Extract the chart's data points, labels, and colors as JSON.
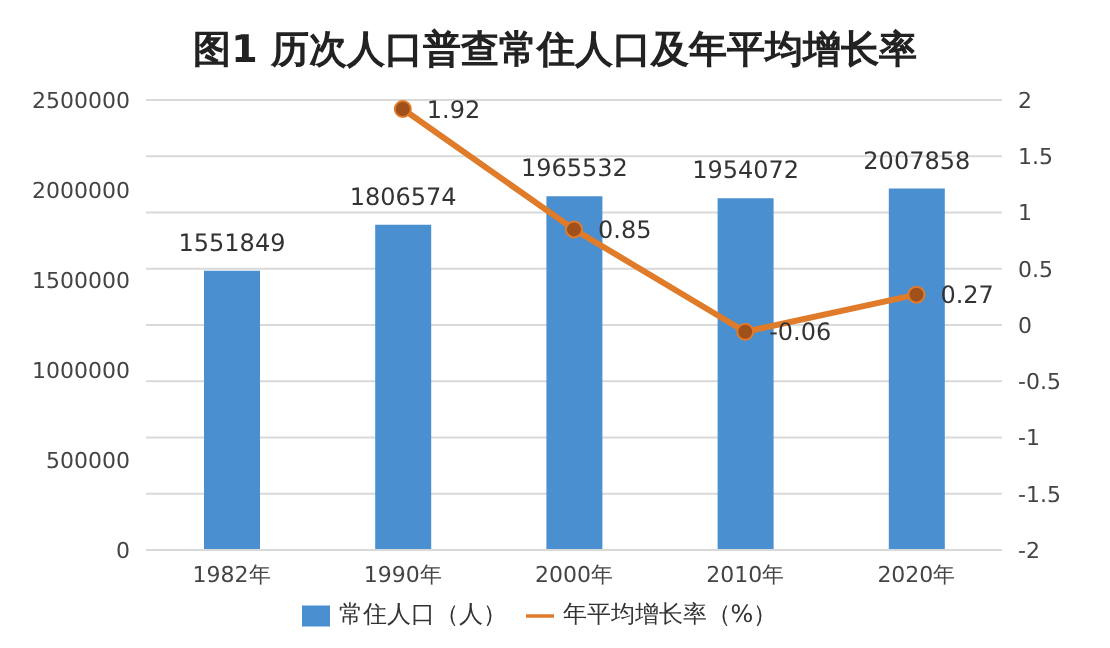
{
  "chart_data": {
    "type": "bar",
    "title": "图1  历次人口普查常住人口及年平均增长率",
    "categories": [
      "1982年",
      "1990年",
      "2000年",
      "2010年",
      "2020年"
    ],
    "series": [
      {
        "name": "常住人口（人）",
        "color": "#4a8fd0",
        "values": [
          1551849,
          1806574,
          1965532,
          1954072,
          2007858
        ]
      },
      {
        "name": "年平均增长率（%）",
        "type": "line",
        "axis": "y2",
        "color": "#e07b2a",
        "values": [
          null,
          1.92,
          0.85,
          -0.06,
          0.27
        ]
      }
    ],
    "ylim": [
      0,
      2500000
    ],
    "yticks": [
      0,
      500000,
      1000000,
      1500000,
      2000000,
      2500000
    ],
    "y2lim": [
      -2,
      2
    ],
    "y2ticks": [
      -2,
      -1.5,
      -1,
      -0.5,
      0,
      0.5,
      1,
      1.5,
      2
    ],
    "grid": true,
    "legend": "bottom",
    "marker": "circle",
    "data_labels": true
  }
}
